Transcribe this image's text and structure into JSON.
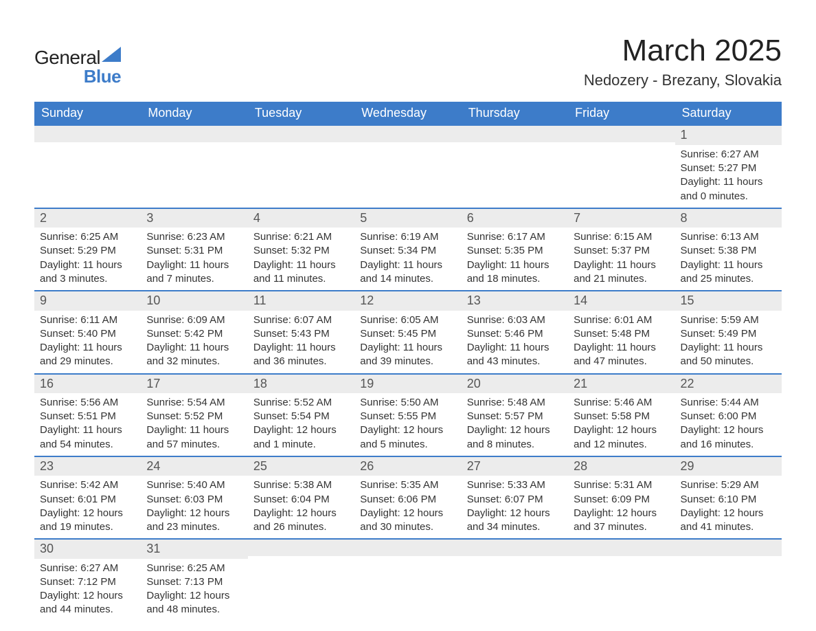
{
  "brand": {
    "name_prefix": "General",
    "name_suffix": "Blue",
    "label": "GeneralBlue",
    "text_color": "#222222",
    "accent_color": "#3d7cc9"
  },
  "header": {
    "month_title": "March 2025",
    "location": "Nedozery - Brezany, Slovakia"
  },
  "palette": {
    "header_bg": "#3d7cc9",
    "header_text": "#ffffff",
    "row_divider": "#3d7cc9",
    "daynum_bg": "#ececec",
    "daynum_text": "#555555",
    "body_text": "#333333",
    "page_bg": "#ffffff"
  },
  "typography": {
    "month_title_fontsize": 44,
    "location_fontsize": 22,
    "weekday_fontsize": 18,
    "daynum_fontsize": 18,
    "body_fontsize": 15,
    "font_family": "Arial"
  },
  "calendar": {
    "weekdays": [
      "Sunday",
      "Monday",
      "Tuesday",
      "Wednesday",
      "Thursday",
      "Friday",
      "Saturday"
    ],
    "weeks": [
      [
        null,
        null,
        null,
        null,
        null,
        null,
        {
          "date": "1",
          "sunrise": "Sunrise: 6:27 AM",
          "sunset": "Sunset: 5:27 PM",
          "daylight1": "Daylight: 11 hours",
          "daylight2": "and 0 minutes."
        }
      ],
      [
        {
          "date": "2",
          "sunrise": "Sunrise: 6:25 AM",
          "sunset": "Sunset: 5:29 PM",
          "daylight1": "Daylight: 11 hours",
          "daylight2": "and 3 minutes."
        },
        {
          "date": "3",
          "sunrise": "Sunrise: 6:23 AM",
          "sunset": "Sunset: 5:31 PM",
          "daylight1": "Daylight: 11 hours",
          "daylight2": "and 7 minutes."
        },
        {
          "date": "4",
          "sunrise": "Sunrise: 6:21 AM",
          "sunset": "Sunset: 5:32 PM",
          "daylight1": "Daylight: 11 hours",
          "daylight2": "and 11 minutes."
        },
        {
          "date": "5",
          "sunrise": "Sunrise: 6:19 AM",
          "sunset": "Sunset: 5:34 PM",
          "daylight1": "Daylight: 11 hours",
          "daylight2": "and 14 minutes."
        },
        {
          "date": "6",
          "sunrise": "Sunrise: 6:17 AM",
          "sunset": "Sunset: 5:35 PM",
          "daylight1": "Daylight: 11 hours",
          "daylight2": "and 18 minutes."
        },
        {
          "date": "7",
          "sunrise": "Sunrise: 6:15 AM",
          "sunset": "Sunset: 5:37 PM",
          "daylight1": "Daylight: 11 hours",
          "daylight2": "and 21 minutes."
        },
        {
          "date": "8",
          "sunrise": "Sunrise: 6:13 AM",
          "sunset": "Sunset: 5:38 PM",
          "daylight1": "Daylight: 11 hours",
          "daylight2": "and 25 minutes."
        }
      ],
      [
        {
          "date": "9",
          "sunrise": "Sunrise: 6:11 AM",
          "sunset": "Sunset: 5:40 PM",
          "daylight1": "Daylight: 11 hours",
          "daylight2": "and 29 minutes."
        },
        {
          "date": "10",
          "sunrise": "Sunrise: 6:09 AM",
          "sunset": "Sunset: 5:42 PM",
          "daylight1": "Daylight: 11 hours",
          "daylight2": "and 32 minutes."
        },
        {
          "date": "11",
          "sunrise": "Sunrise: 6:07 AM",
          "sunset": "Sunset: 5:43 PM",
          "daylight1": "Daylight: 11 hours",
          "daylight2": "and 36 minutes."
        },
        {
          "date": "12",
          "sunrise": "Sunrise: 6:05 AM",
          "sunset": "Sunset: 5:45 PM",
          "daylight1": "Daylight: 11 hours",
          "daylight2": "and 39 minutes."
        },
        {
          "date": "13",
          "sunrise": "Sunrise: 6:03 AM",
          "sunset": "Sunset: 5:46 PM",
          "daylight1": "Daylight: 11 hours",
          "daylight2": "and 43 minutes."
        },
        {
          "date": "14",
          "sunrise": "Sunrise: 6:01 AM",
          "sunset": "Sunset: 5:48 PM",
          "daylight1": "Daylight: 11 hours",
          "daylight2": "and 47 minutes."
        },
        {
          "date": "15",
          "sunrise": "Sunrise: 5:59 AM",
          "sunset": "Sunset: 5:49 PM",
          "daylight1": "Daylight: 11 hours",
          "daylight2": "and 50 minutes."
        }
      ],
      [
        {
          "date": "16",
          "sunrise": "Sunrise: 5:56 AM",
          "sunset": "Sunset: 5:51 PM",
          "daylight1": "Daylight: 11 hours",
          "daylight2": "and 54 minutes."
        },
        {
          "date": "17",
          "sunrise": "Sunrise: 5:54 AM",
          "sunset": "Sunset: 5:52 PM",
          "daylight1": "Daylight: 11 hours",
          "daylight2": "and 57 minutes."
        },
        {
          "date": "18",
          "sunrise": "Sunrise: 5:52 AM",
          "sunset": "Sunset: 5:54 PM",
          "daylight1": "Daylight: 12 hours",
          "daylight2": "and 1 minute."
        },
        {
          "date": "19",
          "sunrise": "Sunrise: 5:50 AM",
          "sunset": "Sunset: 5:55 PM",
          "daylight1": "Daylight: 12 hours",
          "daylight2": "and 5 minutes."
        },
        {
          "date": "20",
          "sunrise": "Sunrise: 5:48 AM",
          "sunset": "Sunset: 5:57 PM",
          "daylight1": "Daylight: 12 hours",
          "daylight2": "and 8 minutes."
        },
        {
          "date": "21",
          "sunrise": "Sunrise: 5:46 AM",
          "sunset": "Sunset: 5:58 PM",
          "daylight1": "Daylight: 12 hours",
          "daylight2": "and 12 minutes."
        },
        {
          "date": "22",
          "sunrise": "Sunrise: 5:44 AM",
          "sunset": "Sunset: 6:00 PM",
          "daylight1": "Daylight: 12 hours",
          "daylight2": "and 16 minutes."
        }
      ],
      [
        {
          "date": "23",
          "sunrise": "Sunrise: 5:42 AM",
          "sunset": "Sunset: 6:01 PM",
          "daylight1": "Daylight: 12 hours",
          "daylight2": "and 19 minutes."
        },
        {
          "date": "24",
          "sunrise": "Sunrise: 5:40 AM",
          "sunset": "Sunset: 6:03 PM",
          "daylight1": "Daylight: 12 hours",
          "daylight2": "and 23 minutes."
        },
        {
          "date": "25",
          "sunrise": "Sunrise: 5:38 AM",
          "sunset": "Sunset: 6:04 PM",
          "daylight1": "Daylight: 12 hours",
          "daylight2": "and 26 minutes."
        },
        {
          "date": "26",
          "sunrise": "Sunrise: 5:35 AM",
          "sunset": "Sunset: 6:06 PM",
          "daylight1": "Daylight: 12 hours",
          "daylight2": "and 30 minutes."
        },
        {
          "date": "27",
          "sunrise": "Sunrise: 5:33 AM",
          "sunset": "Sunset: 6:07 PM",
          "daylight1": "Daylight: 12 hours",
          "daylight2": "and 34 minutes."
        },
        {
          "date": "28",
          "sunrise": "Sunrise: 5:31 AM",
          "sunset": "Sunset: 6:09 PM",
          "daylight1": "Daylight: 12 hours",
          "daylight2": "and 37 minutes."
        },
        {
          "date": "29",
          "sunrise": "Sunrise: 5:29 AM",
          "sunset": "Sunset: 6:10 PM",
          "daylight1": "Daylight: 12 hours",
          "daylight2": "and 41 minutes."
        }
      ],
      [
        {
          "date": "30",
          "sunrise": "Sunrise: 6:27 AM",
          "sunset": "Sunset: 7:12 PM",
          "daylight1": "Daylight: 12 hours",
          "daylight2": "and 44 minutes."
        },
        {
          "date": "31",
          "sunrise": "Sunrise: 6:25 AM",
          "sunset": "Sunset: 7:13 PM",
          "daylight1": "Daylight: 12 hours",
          "daylight2": "and 48 minutes."
        },
        null,
        null,
        null,
        null,
        null
      ]
    ]
  }
}
